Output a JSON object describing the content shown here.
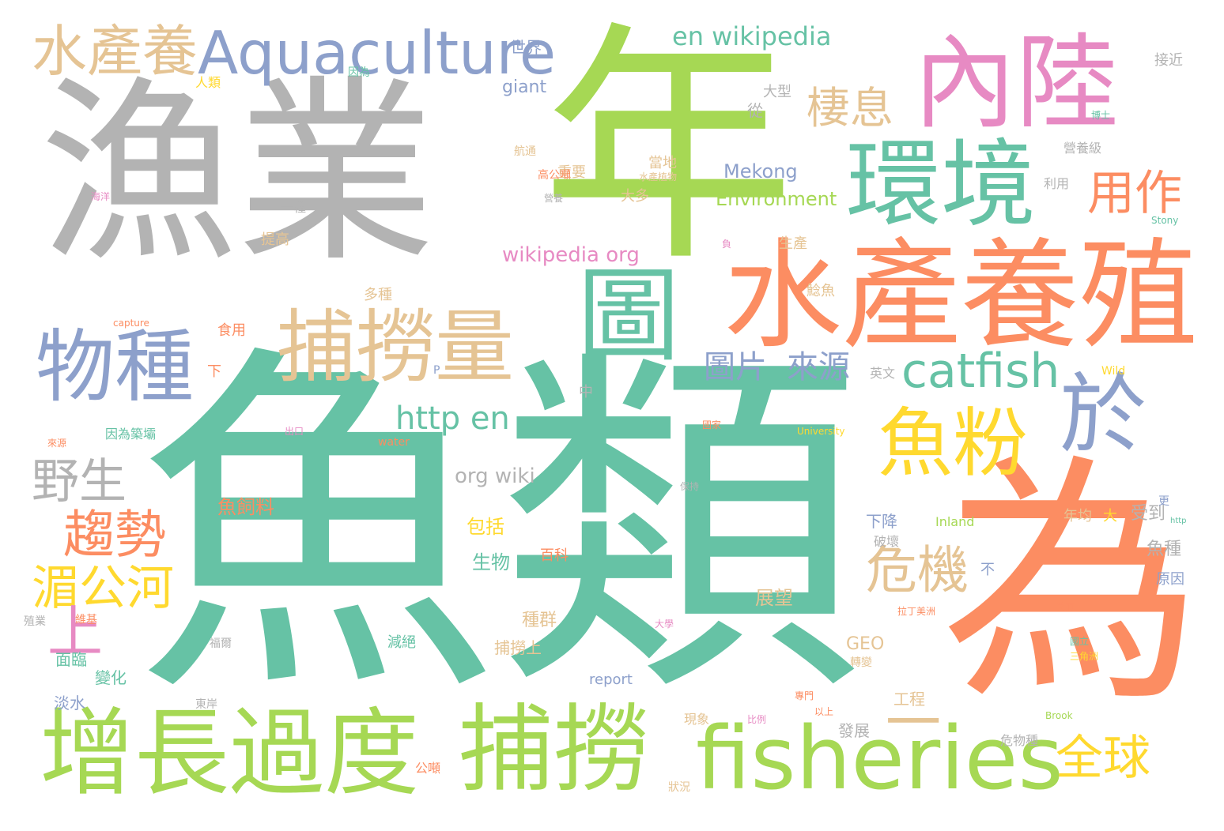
{
  "palette": {
    "teal": "#66c2a5",
    "orange": "#fc8d62",
    "blue": "#8da0cb",
    "pink": "#e78ac3",
    "green": "#a6d854",
    "yellow": "#ffd92f",
    "tan": "#e5c494",
    "gray": "#b3b3b3"
  },
  "words": [
    {
      "text": "魚類",
      "color": "teal"
    },
    {
      "text": "漁業",
      "color": "gray"
    },
    {
      "text": "年",
      "color": "green"
    },
    {
      "text": "為",
      "color": "orange"
    },
    {
      "text": "水產養殖",
      "color": "orange"
    },
    {
      "text": "內陸",
      "color": "pink"
    },
    {
      "text": "環境",
      "color": "teal"
    },
    {
      "text": "增長過度",
      "color": "green"
    },
    {
      "text": "捕撈",
      "color": "green"
    },
    {
      "text": "fisheries",
      "color": "green"
    },
    {
      "text": "物種",
      "color": "blue"
    },
    {
      "text": "捕撈量",
      "color": "tan"
    },
    {
      "text": "圖",
      "color": "teal"
    },
    {
      "text": "Aquaculture",
      "color": "blue"
    },
    {
      "text": "水產養",
      "color": "tan"
    },
    {
      "text": "魚粉",
      "color": "yellow"
    },
    {
      "text": "於",
      "color": "blue"
    },
    {
      "text": "catfish",
      "color": "teal"
    },
    {
      "text": "棲息",
      "color": "tan"
    },
    {
      "text": "用作",
      "color": "orange"
    },
    {
      "text": "趨勢",
      "color": "orange"
    },
    {
      "text": "湄公河",
      "color": "yellow"
    },
    {
      "text": "野生",
      "color": "gray"
    },
    {
      "text": "危機",
      "color": "tan"
    },
    {
      "text": "http en",
      "color": "teal"
    },
    {
      "text": "全球",
      "color": "yellow"
    },
    {
      "text": "en wikipedia",
      "color": "teal"
    },
    {
      "text": "圖片",
      "color": "blue"
    },
    {
      "text": "來源",
      "color": "blue"
    },
    {
      "text": "上",
      "color": "pink"
    },
    {
      "text": "一",
      "color": "tan"
    },
    {
      "text": "wikipedia org",
      "color": "pink"
    },
    {
      "text": "org wiki",
      "color": "gray"
    },
    {
      "text": "Mekong",
      "color": "blue"
    },
    {
      "text": "Environment",
      "color": "green"
    },
    {
      "text": "giant",
      "color": "blue"
    },
    {
      "text": "世界",
      "color": "blue"
    },
    {
      "text": "大型",
      "color": "gray"
    },
    {
      "text": "從",
      "color": "gray"
    },
    {
      "text": "重要",
      "color": "tan"
    },
    {
      "text": "當地",
      "color": "tan"
    },
    {
      "text": "大多",
      "color": "tan"
    },
    {
      "text": "生產",
      "color": "tan"
    },
    {
      "text": "鯰魚",
      "color": "tan"
    },
    {
      "text": "多種",
      "color": "tan"
    },
    {
      "text": "提高",
      "color": "tan"
    },
    {
      "text": "一種",
      "color": "gray"
    },
    {
      "text": "接近",
      "color": "gray"
    },
    {
      "text": "營養級",
      "color": "gray"
    },
    {
      "text": "利用",
      "color": "gray"
    },
    {
      "text": "食用",
      "color": "orange"
    },
    {
      "text": "下",
      "color": "orange"
    },
    {
      "text": "中",
      "color": "gray"
    },
    {
      "text": "英文",
      "color": "gray"
    },
    {
      "text": "魚飼料",
      "color": "orange"
    },
    {
      "text": "包括",
      "color": "yellow"
    },
    {
      "text": "生物",
      "color": "teal"
    },
    {
      "text": "種群",
      "color": "tan"
    },
    {
      "text": "捕撈上",
      "color": "tan"
    },
    {
      "text": "下降",
      "color": "blue"
    },
    {
      "text": "受到",
      "color": "gray"
    },
    {
      "text": "魚種",
      "color": "gray"
    },
    {
      "text": "年均",
      "color": "tan"
    },
    {
      "text": "大",
      "color": "yellow"
    },
    {
      "text": "原因",
      "color": "blue"
    },
    {
      "text": "更",
      "color": "blue"
    },
    {
      "text": "破壞",
      "color": "gray"
    },
    {
      "text": "不",
      "color": "blue"
    },
    {
      "text": "展望",
      "color": "tan"
    },
    {
      "text": "GEO",
      "color": "tan"
    },
    {
      "text": "減絕",
      "color": "teal"
    },
    {
      "text": "工程",
      "color": "tan"
    },
    {
      "text": "發展",
      "color": "gray"
    },
    {
      "text": "危物種",
      "color": "gray"
    },
    {
      "text": "面臨",
      "color": "teal"
    },
    {
      "text": "變化",
      "color": "teal"
    },
    {
      "text": "淡水",
      "color": "blue"
    },
    {
      "text": "公噸",
      "color": "orange"
    },
    {
      "text": "百科",
      "color": "orange"
    },
    {
      "text": "report",
      "color": "blue"
    },
    {
      "text": "現象",
      "color": "tan"
    },
    {
      "text": "Inland",
      "color": "green"
    },
    {
      "text": "water",
      "color": "orange"
    },
    {
      "text": "因為築壩",
      "color": "teal"
    },
    {
      "text": "Wild",
      "color": "yellow"
    },
    {
      "text": "University",
      "color": "yellow"
    },
    {
      "text": "capture",
      "color": "orange"
    },
    {
      "text": "Stony",
      "color": "teal"
    },
    {
      "text": "Brook",
      "color": "green"
    },
    {
      "text": "http",
      "color": "teal"
    },
    {
      "text": "人類",
      "color": "yellow"
    },
    {
      "text": "因為",
      "color": "teal"
    },
    {
      "text": "航通",
      "color": "tan"
    },
    {
      "text": "高公噸",
      "color": "orange"
    },
    {
      "text": "水產植物",
      "color": "tan"
    },
    {
      "text": "狀況",
      "color": "tan"
    },
    {
      "text": "營養",
      "color": "gray"
    },
    {
      "text": "保持",
      "color": "gray"
    },
    {
      "text": "國家",
      "color": "orange"
    },
    {
      "text": "出口",
      "color": "pink"
    },
    {
      "text": "來源",
      "color": "orange"
    },
    {
      "text": "殖業",
      "color": "gray"
    },
    {
      "text": "維基",
      "color": "orange"
    },
    {
      "text": "福爾",
      "color": "gray"
    },
    {
      "text": "東岸",
      "color": "gray"
    },
    {
      "text": "負",
      "color": "pink"
    },
    {
      "text": "博士",
      "color": "teal"
    },
    {
      "text": "國立",
      "color": "teal"
    },
    {
      "text": "三角洲",
      "color": "yellow"
    },
    {
      "text": "轉變",
      "color": "tan"
    },
    {
      "text": "專門",
      "color": "orange"
    },
    {
      "text": "以上",
      "color": "orange"
    },
    {
      "text": "比例",
      "color": "pink"
    },
    {
      "text": "拉丁美洲",
      "color": "orange"
    },
    {
      "text": "反而",
      "color": "orange"
    },
    {
      "text": "大學",
      "color": "pink"
    },
    {
      "text": "海洋",
      "color": "pink"
    },
    {
      "text": "P",
      "color": "blue"
    }
  ]
}
